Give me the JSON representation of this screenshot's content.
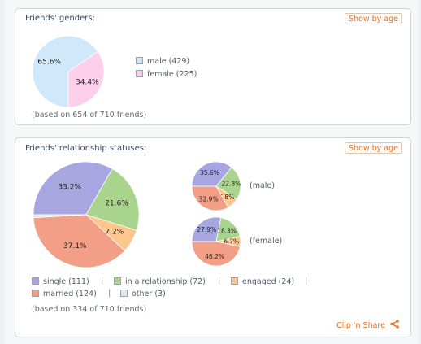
{
  "gender_panel": {
    "title": "Friends' genders:",
    "age_button": "Show by age",
    "note": "(based on 654 of 710 friends)"
  },
  "relationship_panel": {
    "title": "Friends' relationship statuses:",
    "age_button": "Show by age",
    "note": "(based on 334 of 710 friends)",
    "male_label": "(male)",
    "female_label": "(female)",
    "separator": "|",
    "clip_label": "Clip 'n Share",
    "share_icon": "share-icon"
  },
  "colors": {
    "male": "#cfe9fb",
    "female": "#fccfea",
    "single": "#a8a6e0",
    "in_relationship": "#a9d48d",
    "engaged": "#fbc78c",
    "married": "#f39e86",
    "other": "#e6e6e6",
    "accent": "#e8711c"
  },
  "chart_data": [
    {
      "type": "pie",
      "title": "Friends' genders:",
      "categories": [
        "male",
        "female"
      ],
      "legend": [
        "male (429)",
        "female (225)"
      ],
      "values": [
        429,
        225
      ],
      "percent_labels": [
        "65.6%",
        "34.4%"
      ]
    },
    {
      "type": "pie",
      "title": "Friends' relationship statuses:",
      "categories": [
        "single",
        "in a relationship",
        "engaged",
        "married",
        "other"
      ],
      "legend": [
        "single (111)",
        "in a relationship (72)",
        "engaged (24)",
        "married (124)",
        "other (3)"
      ],
      "values": [
        111,
        72,
        24,
        124,
        3
      ],
      "percent_labels": [
        "33.2%",
        "21.6%",
        "7.2%",
        "37.1%",
        ""
      ]
    },
    {
      "type": "pie",
      "label": "(male)",
      "categories": [
        "single",
        "in a relationship",
        "engaged",
        "married"
      ],
      "values": [
        35.6,
        22.8,
        7.8,
        32.9
      ],
      "percent_labels": [
        "35.6%",
        "22.8%",
        "7.8%",
        "32.9%"
      ]
    },
    {
      "type": "pie",
      "label": "(female)",
      "categories": [
        "single",
        "in a relationship",
        "engaged",
        "married"
      ],
      "values": [
        27.9,
        18.3,
        6.7,
        46.2
      ],
      "percent_labels": [
        "27.9%",
        "18.3%",
        "6.7%",
        "46.2%"
      ]
    }
  ]
}
